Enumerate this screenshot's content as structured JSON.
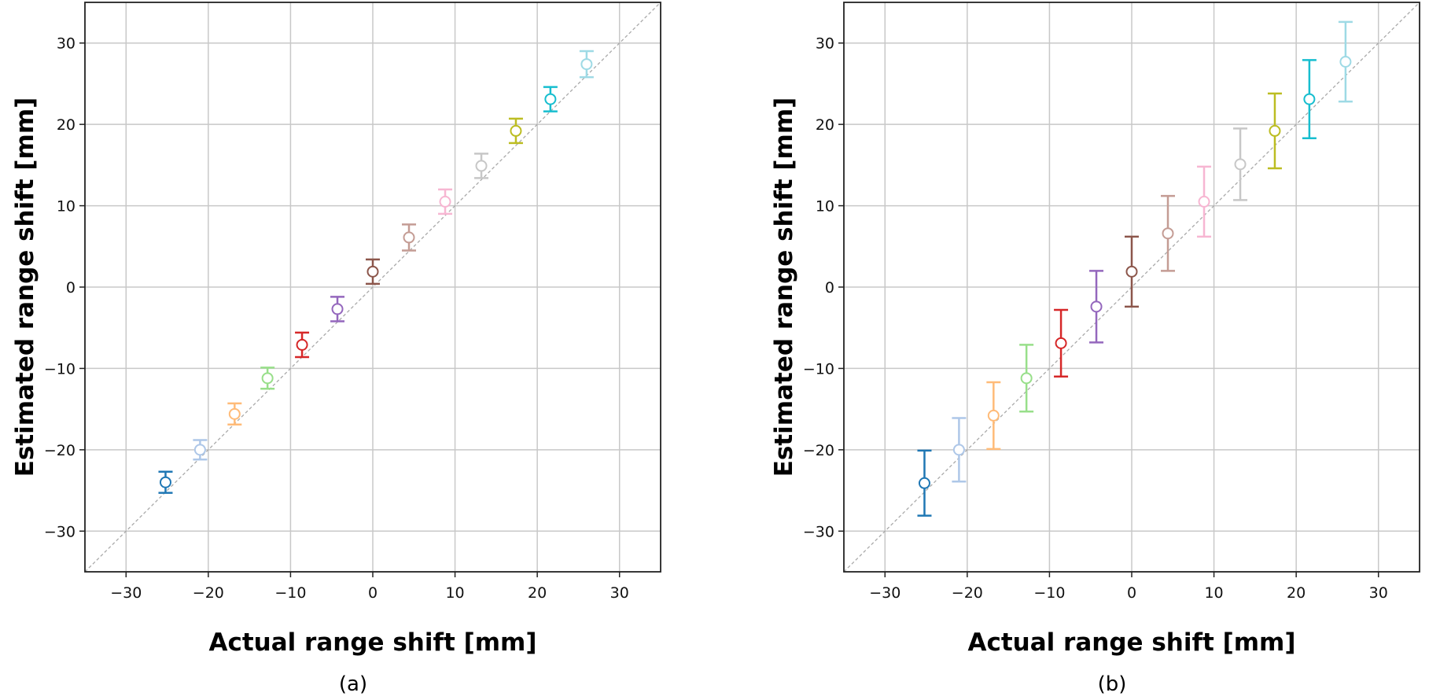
{
  "chart_data": [
    {
      "type": "scatter",
      "panel_label": "(a)",
      "xlabel": "Actual range shift [mm]",
      "ylabel": "Estimated range shift [mm]",
      "xlim": [
        -35,
        35
      ],
      "ylim": [
        -35,
        35
      ],
      "xticks": [
        -30,
        -20,
        -10,
        0,
        10,
        20,
        30
      ],
      "yticks": [
        -30,
        -20,
        -10,
        0,
        10,
        20,
        30
      ],
      "tick_labels": [
        "−30",
        "−20",
        "−10",
        "0",
        "10",
        "20",
        "30"
      ],
      "grid": true,
      "reference_line": "y = x",
      "points": [
        {
          "x": -25.2,
          "y": -24.0,
          "err": 1.3,
          "color": "#1f77b4"
        },
        {
          "x": -21.0,
          "y": -20.0,
          "err": 1.2,
          "color": "#aec7e8"
        },
        {
          "x": -16.8,
          "y": -15.6,
          "err": 1.3,
          "color": "#ffbb78"
        },
        {
          "x": -12.8,
          "y": -11.2,
          "err": 1.3,
          "color": "#98df8a"
        },
        {
          "x": -8.6,
          "y": -7.1,
          "err": 1.5,
          "color": "#d62728"
        },
        {
          "x": -4.3,
          "y": -2.7,
          "err": 1.5,
          "color": "#9467bd"
        },
        {
          "x": 0.0,
          "y": 1.9,
          "err": 1.5,
          "color": "#8c564b"
        },
        {
          "x": 4.4,
          "y": 6.1,
          "err": 1.6,
          "color": "#c49c94"
        },
        {
          "x": 8.8,
          "y": 10.5,
          "err": 1.5,
          "color": "#f7b6d2"
        },
        {
          "x": 13.2,
          "y": 14.9,
          "err": 1.5,
          "color": "#c7c7c7"
        },
        {
          "x": 17.4,
          "y": 19.2,
          "err": 1.5,
          "color": "#bcbd22"
        },
        {
          "x": 21.6,
          "y": 23.1,
          "err": 1.5,
          "color": "#17becf"
        },
        {
          "x": 26.0,
          "y": 27.4,
          "err": 1.6,
          "color": "#9edae5"
        }
      ]
    },
    {
      "type": "scatter",
      "panel_label": "(b)",
      "xlabel": "Actual range shift [mm]",
      "ylabel": "Estimated range shift [mm]",
      "xlim": [
        -35,
        35
      ],
      "ylim": [
        -35,
        35
      ],
      "xticks": [
        -30,
        -20,
        -10,
        0,
        10,
        20,
        30
      ],
      "yticks": [
        -30,
        -20,
        -10,
        0,
        10,
        20,
        30
      ],
      "tick_labels": [
        "−30",
        "−20",
        "−10",
        "0",
        "10",
        "20",
        "30"
      ],
      "grid": true,
      "reference_line": "y = x",
      "points": [
        {
          "x": -25.2,
          "y": -24.1,
          "err": 4.0,
          "color": "#1f77b4"
        },
        {
          "x": -21.0,
          "y": -20.0,
          "err": 3.9,
          "color": "#aec7e8"
        },
        {
          "x": -16.8,
          "y": -15.8,
          "err": 4.1,
          "color": "#ffbb78"
        },
        {
          "x": -12.8,
          "y": -11.2,
          "err": 4.1,
          "color": "#98df8a"
        },
        {
          "x": -8.6,
          "y": -6.9,
          "err": 4.1,
          "color": "#d62728"
        },
        {
          "x": -4.3,
          "y": -2.4,
          "err": 4.4,
          "color": "#9467bd"
        },
        {
          "x": 0.0,
          "y": 1.9,
          "err": 4.3,
          "color": "#8c564b"
        },
        {
          "x": 4.4,
          "y": 6.6,
          "err": 4.6,
          "color": "#c49c94"
        },
        {
          "x": 8.8,
          "y": 10.5,
          "err": 4.3,
          "color": "#f7b6d2"
        },
        {
          "x": 13.2,
          "y": 15.1,
          "err": 4.4,
          "color": "#c7c7c7"
        },
        {
          "x": 17.4,
          "y": 19.2,
          "err": 4.6,
          "color": "#bcbd22"
        },
        {
          "x": 21.6,
          "y": 23.1,
          "err": 4.8,
          "color": "#17becf"
        },
        {
          "x": 26.0,
          "y": 27.7,
          "err": 4.9,
          "color": "#9edae5"
        }
      ]
    }
  ]
}
